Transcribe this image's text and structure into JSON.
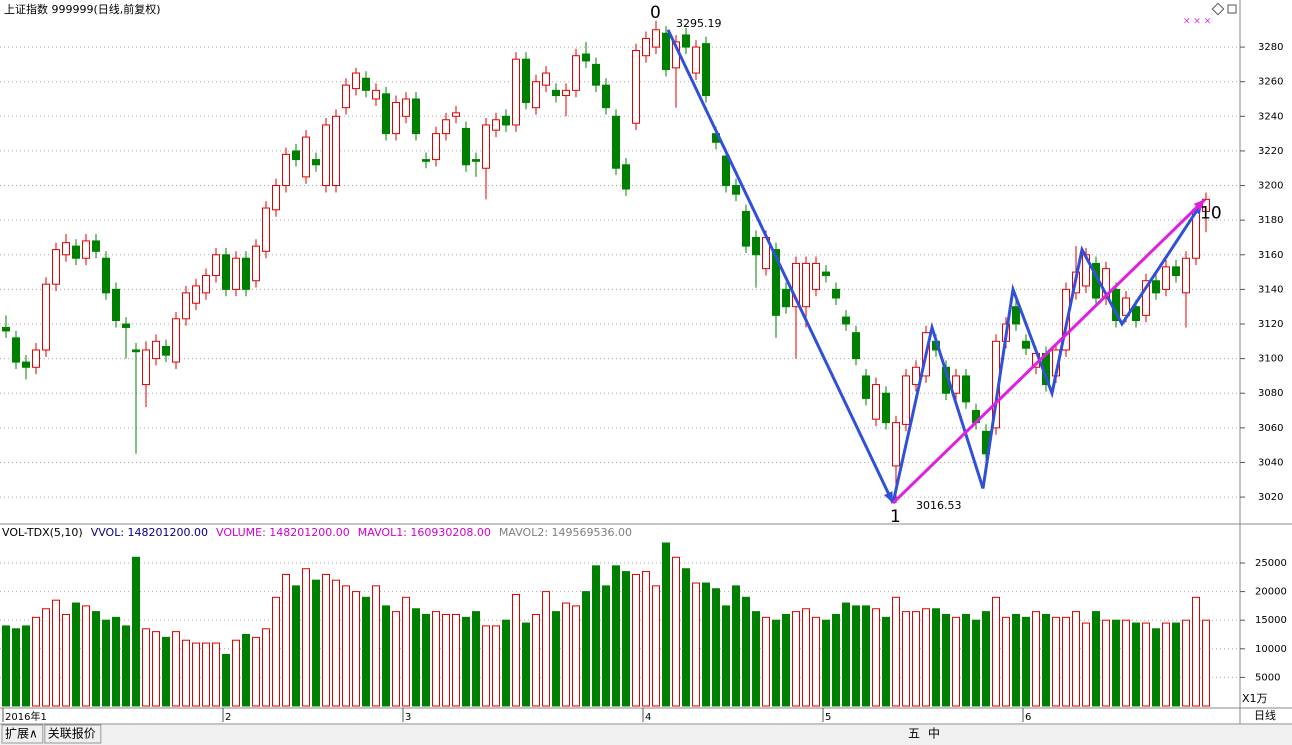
{
  "header": {
    "title": "上证指数 999999(日线,前复权)"
  },
  "chart_data": {
    "type": "candlestick",
    "open": [
      3118,
      3112,
      3098,
      3095,
      3105,
      3143,
      3160,
      3165,
      3158,
      3168,
      3158,
      3140,
      3120,
      3105,
      3085,
      3100,
      3107,
      3098,
      3123,
      3132,
      3138,
      3148,
      3160,
      3140,
      3158,
      3145,
      3162,
      3186,
      3200,
      3220,
      3205,
      3215,
      3200,
      3200,
      3245,
      3256,
      3262,
      3250,
      3253,
      3230,
      3240,
      3250,
      3215,
      3215,
      3230,
      3240,
      3233,
      3215,
      3210,
      3232,
      3240,
      3235,
      3273,
      3245,
      3258,
      3255,
      3252,
      3255,
      3276,
      3270,
      3258,
      3240,
      3212,
      3236,
      3275,
      3280,
      3288,
      3268,
      3287,
      3265,
      3282,
      3230,
      3217,
      3200,
      3185,
      3170,
      3152,
      3163,
      3140,
      3130,
      3130,
      3140,
      3150,
      3140,
      3124,
      3115,
      3090,
      3065,
      3080,
      3038,
      3062,
      3085,
      3090,
      3110,
      3095,
      3080,
      3090,
      3070,
      3058,
      3060,
      3110,
      3130,
      3110,
      3095,
      3103,
      3090,
      3105,
      3138,
      3142,
      3155,
      3135,
      3140,
      3125,
      3130,
      3125,
      3145,
      3140,
      3153,
      3138,
      3158,
      3185
    ],
    "high": [
      3125,
      3116,
      3102,
      3109,
      3147,
      3167,
      3172,
      3169,
      3172,
      3172,
      3162,
      3144,
      3124,
      3109,
      3110,
      3114,
      3111,
      3127,
      3142,
      3146,
      3152,
      3164,
      3164,
      3162,
      3162,
      3169,
      3191,
      3204,
      3222,
      3224,
      3232,
      3219,
      3239,
      3244,
      3262,
      3268,
      3266,
      3259,
      3257,
      3252,
      3254,
      3254,
      3219,
      3234,
      3242,
      3246,
      3237,
      3219,
      3239,
      3242,
      3244,
      3277,
      3277,
      3264,
      3269,
      3259,
      3259,
      3279,
      3283,
      3274,
      3262,
      3244,
      3216,
      3282,
      3289,
      3295.19,
      3292,
      3287,
      3291,
      3284,
      3286,
      3234,
      3221,
      3204,
      3189,
      3174,
      3174,
      3167,
      3144,
      3159,
      3159,
      3159,
      3154,
      3144,
      3128,
      3119,
      3094,
      3089,
      3084,
      3067,
      3094,
      3099,
      3119,
      3114,
      3099,
      3094,
      3094,
      3074,
      3062,
      3114,
      3124,
      3134,
      3114,
      3107,
      3107,
      3109,
      3144,
      3165,
      3164,
      3159,
      3156,
      3144,
      3139,
      3134,
      3149,
      3149,
      3157,
      3157,
      3162,
      3189,
      3196
    ],
    "low": [
      3112,
      3094,
      3088,
      3091,
      3101,
      3139,
      3156,
      3154,
      3154,
      3158,
      3134,
      3118,
      3100,
      3045,
      3072,
      3096,
      3098,
      3094,
      3119,
      3128,
      3134,
      3144,
      3136,
      3136,
      3136,
      3141,
      3158,
      3182,
      3196,
      3211,
      3201,
      3208,
      3196,
      3196,
      3241,
      3252,
      3251,
      3246,
      3226,
      3226,
      3236,
      3226,
      3210,
      3211,
      3226,
      3236,
      3208,
      3205,
      3192,
      3228,
      3231,
      3231,
      3244,
      3241,
      3254,
      3248,
      3240,
      3251,
      3268,
      3254,
      3241,
      3206,
      3194,
      3232,
      3271,
      3276,
      3263,
      3245,
      3276,
      3261,
      3248,
      3221,
      3196,
      3191,
      3161,
      3141,
      3148,
      3112,
      3126,
      3100,
      3118,
      3136,
      3144,
      3131,
      3116,
      3096,
      3073,
      3061,
      3059,
      3016.53,
      3058,
      3081,
      3086,
      3101,
      3076,
      3076,
      3071,
      3059,
      3041,
      3056,
      3106,
      3116,
      3102,
      3091,
      3081,
      3086,
      3101,
      3134,
      3138,
      3131,
      3131,
      3118,
      3121,
      3118,
      3121,
      3134,
      3136,
      3144,
      3118,
      3154,
      3173
    ],
    "close": [
      3116,
      3098,
      3095,
      3105,
      3143,
      3163,
      3167,
      3158,
      3168,
      3162,
      3138,
      3122,
      3118,
      3104,
      3105,
      3110,
      3102,
      3123,
      3138,
      3142,
      3148,
      3160,
      3140,
      3158,
      3140,
      3165,
      3187,
      3200,
      3218,
      3215,
      3228,
      3212,
      3235,
      3240,
      3258,
      3265,
      3255,
      3255,
      3230,
      3248,
      3250,
      3230,
      3214,
      3230,
      3238,
      3242,
      3212,
      3214,
      3235,
      3238,
      3235,
      3273,
      3248,
      3260,
      3265,
      3252,
      3255,
      3275,
      3272,
      3258,
      3245,
      3210,
      3198,
      3278,
      3285,
      3290,
      3267,
      3283,
      3280,
      3280,
      3252,
      3225,
      3200,
      3195,
      3165,
      3160,
      3170,
      3125,
      3130,
      3155,
      3155,
      3155,
      3148,
      3135,
      3120,
      3100,
      3077,
      3085,
      3063,
      3063,
      3090,
      3095,
      3115,
      3105,
      3080,
      3090,
      3075,
      3063,
      3045,
      3110,
      3120,
      3120,
      3106,
      3103,
      3085,
      3105,
      3140,
      3150,
      3160,
      3135,
      3152,
      3122,
      3135,
      3122,
      3145,
      3138,
      3153,
      3148,
      3158,
      3185,
      3192
    ],
    "volume": [
      14000,
      13500,
      14000,
      15500,
      17000,
      18500,
      16000,
      18000,
      17500,
      16500,
      15000,
      15500,
      14000,
      26000,
      13500,
      13000,
      12000,
      13000,
      11500,
      11000,
      11000,
      11000,
      9000,
      11500,
      12500,
      12000,
      13500,
      19000,
      23000,
      21000,
      24000,
      22000,
      23000,
      22000,
      21000,
      20000,
      19000,
      21000,
      17500,
      16500,
      19000,
      17000,
      16000,
      16500,
      16000,
      16000,
      15500,
      16500,
      14000,
      14000,
      15000,
      19500,
      14500,
      16000,
      20000,
      16500,
      18000,
      17500,
      20000,
      24500,
      21000,
      24500,
      23500,
      23000,
      23500,
      21000,
      28500,
      26000,
      24000,
      21500,
      21500,
      20500,
      17500,
      21000,
      19000,
      16500,
      15500,
      15000,
      16000,
      16500,
      17000,
      15500,
      15000,
      16000,
      18000,
      17500,
      17500,
      17000,
      15500,
      19000,
      16500,
      16500,
      17000,
      17000,
      16000,
      15500,
      16000,
      15000,
      16500,
      19000,
      15500,
      16000,
      15500,
      16500,
      16000,
      15500,
      15500,
      16500,
      14500,
      16500,
      15000,
      15000,
      15000,
      14500,
      14500,
      13500,
      14500,
      14500,
      15000,
      19000,
      15000
    ],
    "up_color": "#e00000",
    "down_color": "#008000",
    "ylim": [
      3005.6,
      3307.2
    ],
    "yticks": [
      3020,
      3040,
      3060,
      3080,
      3100,
      3120,
      3140,
      3160,
      3180,
      3200,
      3220,
      3240,
      3260,
      3280
    ],
    "vol_ylim": [
      0,
      31469
    ],
    "vol_yticks": [
      5000,
      10000,
      15000,
      20000,
      25000
    ],
    "vol_unit": "X1万",
    "xticks": [
      {
        "value": 0,
        "label": "2016年1"
      },
      {
        "value": 22,
        "label": "2"
      },
      {
        "value": 40,
        "label": "3"
      },
      {
        "value": 64,
        "label": "4"
      },
      {
        "value": 82,
        "label": "5"
      },
      {
        "value": 102,
        "label": "6"
      }
    ],
    "annotations": [
      {
        "text": "0",
        "i": 65,
        "v": 3295.19
      },
      {
        "text": "3295.19",
        "i": 67,
        "v": 3295.19
      },
      {
        "text": "1",
        "i": 89,
        "v": 3016.53
      },
      {
        "text": "3016.53",
        "i": 91,
        "v": 3016.53
      },
      {
        "text": "10",
        "i": 120,
        "v": 3192
      }
    ],
    "waves": [
      {
        "color": "#3050d8",
        "points": [
          [
            66.2,
            3290
          ],
          [
            88.7,
            3016.53
          ]
        ]
      },
      {
        "color": "#3050d8",
        "points": [
          [
            88.7,
            3016.53
          ],
          [
            92.6,
            3118
          ],
          [
            97.7,
            3025
          ],
          [
            100.7,
            3140
          ],
          [
            104.6,
            3080
          ],
          [
            107.6,
            3163
          ],
          [
            111.6,
            3120
          ],
          [
            119.6,
            3190
          ]
        ]
      },
      {
        "color": "#e020e0",
        "points": [
          [
            88.7,
            3016.53
          ],
          [
            119.9,
            3192
          ]
        ]
      }
    ],
    "vol_header": [
      {
        "text": "VOL-TDX(5,10)",
        "color": "#000000"
      },
      {
        "text": "VVOL: 148201200.00",
        "color": "#000080"
      },
      {
        "text": "VOLUME: 148201200.00",
        "color": "#d000d0"
      },
      {
        "text": "MAVOL1: 160930208.00",
        "color": "#d000d0"
      },
      {
        "text": "MAVOL2: 149569536.00",
        "color": "#808080"
      }
    ],
    "period": "日线"
  },
  "footer": {
    "tabs": [
      "扩展∧",
      "关联报价"
    ],
    "tools": [
      "五",
      "中"
    ]
  }
}
